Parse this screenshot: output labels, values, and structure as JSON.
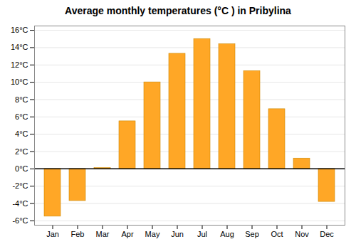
{
  "chart_data": {
    "type": "bar",
    "title": "Average monthly temperatures (°C ) in Pribylina",
    "categories": [
      "Jan",
      "Feb",
      "Mar",
      "Apr",
      "May",
      "Jun",
      "Jul",
      "Aug",
      "Sep",
      "Oct",
      "Nov",
      "Dec"
    ],
    "values": [
      -5.5,
      -3.7,
      0.1,
      5.5,
      10.0,
      13.3,
      15.0,
      14.4,
      11.3,
      6.9,
      1.2,
      -3.8
    ],
    "color": "#FFA726",
    "ylim": [
      -6.5,
      16.5
    ],
    "yticks": [
      {
        "value": -6,
        "label": "-6°C"
      },
      {
        "value": -4,
        "label": "-4°C"
      },
      {
        "value": -2,
        "label": "-2°C"
      },
      {
        "value": 0,
        "label": "0°C"
      },
      {
        "value": 2,
        "label": "2°C"
      },
      {
        "value": 4,
        "label": "4°C"
      },
      {
        "value": 6,
        "label": "6°C"
      },
      {
        "value": 8,
        "label": "8°C"
      },
      {
        "value": 10,
        "label": "10°C"
      },
      {
        "value": 12,
        "label": "12°C"
      },
      {
        "value": 14,
        "label": "14°C"
      },
      {
        "value": 16,
        "label": "16°C"
      }
    ],
    "grid": true
  }
}
